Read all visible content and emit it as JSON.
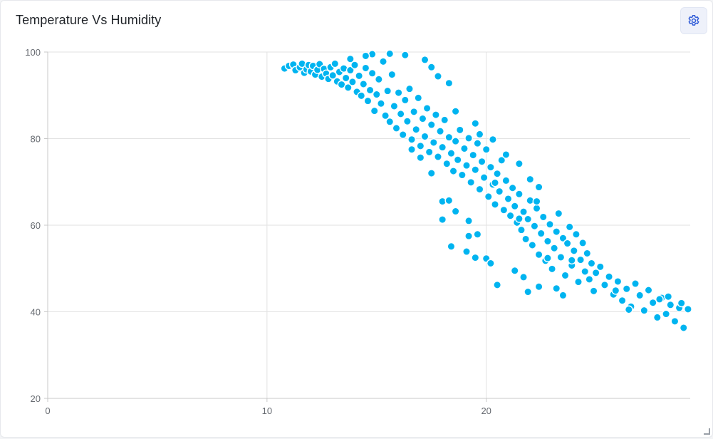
{
  "card": {
    "title": "Temperature Vs Humidity"
  },
  "settings": {
    "icon": "gear-icon"
  },
  "colors": {
    "point": "#00b4f0",
    "grid": "#e2e2e2",
    "axis": "#c8c8c8"
  },
  "chart_data": {
    "type": "scatter",
    "title": "Temperature Vs Humidity",
    "xlabel": "",
    "ylabel": "",
    "xlim": [
      0,
      29.3
    ],
    "ylim": [
      20,
      100
    ],
    "xticks": [
      0,
      10,
      20
    ],
    "yticks": [
      20,
      40,
      60,
      80,
      100
    ],
    "grid": true,
    "points": [
      [
        10.8,
        96.2
      ],
      [
        11.0,
        96.8
      ],
      [
        11.2,
        97.1
      ],
      [
        11.3,
        95.8
      ],
      [
        11.5,
        96.5
      ],
      [
        11.6,
        97.3
      ],
      [
        11.7,
        95.2
      ],
      [
        11.8,
        96.0
      ],
      [
        11.9,
        97.0
      ],
      [
        12.0,
        95.5
      ],
      [
        12.1,
        96.8
      ],
      [
        12.2,
        94.8
      ],
      [
        12.3,
        95.9
      ],
      [
        12.4,
        97.2
      ],
      [
        12.5,
        94.3
      ],
      [
        12.6,
        96.1
      ],
      [
        12.7,
        95.0
      ],
      [
        12.8,
        93.8
      ],
      [
        12.9,
        96.5
      ],
      [
        13.0,
        94.6
      ],
      [
        13.1,
        97.3
      ],
      [
        13.2,
        93.2
      ],
      [
        13.3,
        95.4
      ],
      [
        13.4,
        92.5
      ],
      [
        13.5,
        96.2
      ],
      [
        13.6,
        94.0
      ],
      [
        13.7,
        91.8
      ],
      [
        13.8,
        95.8
      ],
      [
        13.9,
        93.1
      ],
      [
        14.0,
        97.0
      ],
      [
        14.1,
        90.8
      ],
      [
        14.2,
        94.5
      ],
      [
        14.3,
        89.9
      ],
      [
        14.4,
        92.6
      ],
      [
        14.5,
        96.3
      ],
      [
        14.6,
        88.7
      ],
      [
        14.7,
        91.2
      ],
      [
        14.8,
        95.1
      ],
      [
        14.9,
        86.4
      ],
      [
        15.0,
        90.2
      ],
      [
        15.1,
        93.7
      ],
      [
        15.2,
        88.1
      ],
      [
        15.3,
        97.8
      ],
      [
        15.4,
        85.3
      ],
      [
        15.5,
        91.0
      ],
      [
        15.6,
        83.9
      ],
      [
        15.7,
        94.8
      ],
      [
        15.8,
        87.5
      ],
      [
        15.9,
        82.4
      ],
      [
        16.0,
        90.6
      ],
      [
        16.1,
        85.7
      ],
      [
        16.2,
        80.9
      ],
      [
        16.3,
        88.9
      ],
      [
        16.4,
        84.0
      ],
      [
        16.5,
        91.5
      ],
      [
        16.6,
        79.8
      ],
      [
        16.7,
        86.2
      ],
      [
        16.8,
        82.1
      ],
      [
        16.9,
        89.4
      ],
      [
        17.0,
        78.3
      ],
      [
        17.1,
        84.6
      ],
      [
        17.2,
        80.5
      ],
      [
        17.3,
        87.0
      ],
      [
        17.4,
        76.9
      ],
      [
        17.5,
        83.2
      ],
      [
        17.6,
        79.1
      ],
      [
        17.7,
        85.5
      ],
      [
        17.8,
        75.8
      ],
      [
        17.9,
        81.7
      ],
      [
        18.0,
        78.0
      ],
      [
        18.1,
        84.3
      ],
      [
        18.2,
        74.2
      ],
      [
        18.3,
        80.3
      ],
      [
        18.4,
        76.6
      ],
      [
        18.5,
        72.5
      ],
      [
        18.6,
        79.4
      ],
      [
        18.7,
        75.1
      ],
      [
        18.8,
        82.0
      ],
      [
        18.9,
        71.6
      ],
      [
        19.0,
        77.7
      ],
      [
        19.1,
        73.8
      ],
      [
        19.2,
        80.1
      ],
      [
        19.3,
        69.9
      ],
      [
        19.4,
        76.2
      ],
      [
        19.5,
        72.8
      ],
      [
        19.6,
        78.9
      ],
      [
        19.7,
        68.3
      ],
      [
        19.8,
        74.7
      ],
      [
        19.9,
        71.0
      ],
      [
        20.0,
        77.5
      ],
      [
        20.1,
        66.6
      ],
      [
        20.2,
        73.4
      ],
      [
        20.3,
        69.4
      ],
      [
        20.4,
        64.8
      ],
      [
        20.5,
        71.9
      ],
      [
        20.6,
        67.8
      ],
      [
        20.7,
        75.0
      ],
      [
        20.8,
        63.5
      ],
      [
        20.9,
        70.3
      ],
      [
        21.0,
        66.1
      ],
      [
        21.1,
        62.2
      ],
      [
        21.2,
        68.6
      ],
      [
        21.3,
        64.4
      ],
      [
        21.4,
        60.6
      ],
      [
        21.5,
        67.2
      ],
      [
        21.6,
        58.9
      ],
      [
        21.7,
        63.1
      ],
      [
        21.8,
        56.8
      ],
      [
        21.9,
        61.4
      ],
      [
        22.0,
        65.7
      ],
      [
        22.1,
        55.4
      ],
      [
        22.2,
        59.8
      ],
      [
        22.3,
        63.9
      ],
      [
        22.4,
        53.2
      ],
      [
        22.5,
        58.1
      ],
      [
        22.6,
        61.9
      ],
      [
        22.7,
        51.8
      ],
      [
        22.8,
        56.3
      ],
      [
        22.9,
        60.2
      ],
      [
        23.0,
        49.9
      ],
      [
        23.1,
        54.7
      ],
      [
        23.2,
        58.5
      ],
      [
        23.3,
        62.7
      ],
      [
        23.4,
        52.6
      ],
      [
        23.5,
        57.0
      ],
      [
        23.6,
        48.4
      ],
      [
        23.7,
        55.8
      ],
      [
        23.8,
        59.6
      ],
      [
        23.9,
        50.7
      ],
      [
        24.0,
        54.1
      ],
      [
        24.1,
        57.9
      ],
      [
        24.2,
        46.9
      ],
      [
        24.3,
        52.0
      ],
      [
        24.4,
        55.9
      ],
      [
        24.5,
        49.3
      ],
      [
        24.6,
        53.5
      ],
      [
        24.7,
        47.5
      ],
      [
        24.8,
        51.2
      ],
      [
        24.9,
        44.8
      ],
      [
        25.0,
        49.0
      ],
      [
        25.2,
        50.4
      ],
      [
        25.4,
        46.2
      ],
      [
        25.6,
        48.1
      ],
      [
        25.8,
        44.0
      ],
      [
        26.0,
        47.0
      ],
      [
        26.2,
        42.6
      ],
      [
        26.4,
        45.3
      ],
      [
        26.6,
        41.2
      ],
      [
        26.8,
        46.5
      ],
      [
        27.0,
        43.8
      ],
      [
        27.2,
        40.3
      ],
      [
        27.4,
        45.0
      ],
      [
        27.6,
        42.1
      ],
      [
        27.8,
        38.7
      ],
      [
        28.0,
        43.2
      ],
      [
        28.2,
        39.5
      ],
      [
        28.4,
        41.6
      ],
      [
        28.6,
        37.8
      ],
      [
        28.8,
        40.9
      ],
      [
        29.0,
        36.3
      ],
      [
        29.2,
        40.6
      ],
      [
        28.3,
        43.5
      ],
      [
        27.9,
        42.9
      ],
      [
        28.9,
        42.0
      ],
      [
        26.5,
        40.5
      ],
      [
        25.9,
        44.9
      ],
      [
        17.2,
        98.2
      ],
      [
        16.3,
        99.3
      ],
      [
        15.6,
        99.6
      ],
      [
        14.8,
        99.5
      ],
      [
        14.5,
        99.1
      ],
      [
        13.8,
        98.4
      ],
      [
        17.5,
        96.5
      ],
      [
        17.8,
        94.4
      ],
      [
        18.3,
        92.8
      ],
      [
        18.6,
        86.3
      ],
      [
        19.5,
        83.5
      ],
      [
        19.7,
        81.0
      ],
      [
        20.3,
        79.8
      ],
      [
        20.9,
        76.3
      ],
      [
        21.5,
        74.2
      ],
      [
        22.0,
        70.6
      ],
      [
        22.4,
        68.8
      ],
      [
        22.3,
        65.5
      ],
      [
        21.5,
        61.5
      ],
      [
        20.4,
        69.8
      ],
      [
        18.0,
        65.5
      ],
      [
        18.3,
        65.7
      ],
      [
        18.6,
        63.2
      ],
      [
        19.2,
        61.0
      ],
      [
        18.0,
        61.3
      ],
      [
        18.4,
        55.1
      ],
      [
        19.1,
        53.9
      ],
      [
        19.5,
        52.5
      ],
      [
        20.0,
        52.3
      ],
      [
        20.2,
        51.2
      ],
      [
        20.5,
        46.2
      ],
      [
        21.3,
        49.5
      ],
      [
        21.7,
        48.0
      ],
      [
        21.9,
        44.6
      ],
      [
        22.4,
        45.8
      ],
      [
        23.2,
        45.4
      ],
      [
        23.5,
        43.8
      ],
      [
        22.8,
        52.4
      ],
      [
        23.9,
        51.9
      ],
      [
        19.2,
        57.5
      ],
      [
        19.6,
        57.9
      ],
      [
        17.5,
        72.0
      ],
      [
        17.0,
        75.6
      ],
      [
        16.6,
        77.5
      ]
    ]
  }
}
